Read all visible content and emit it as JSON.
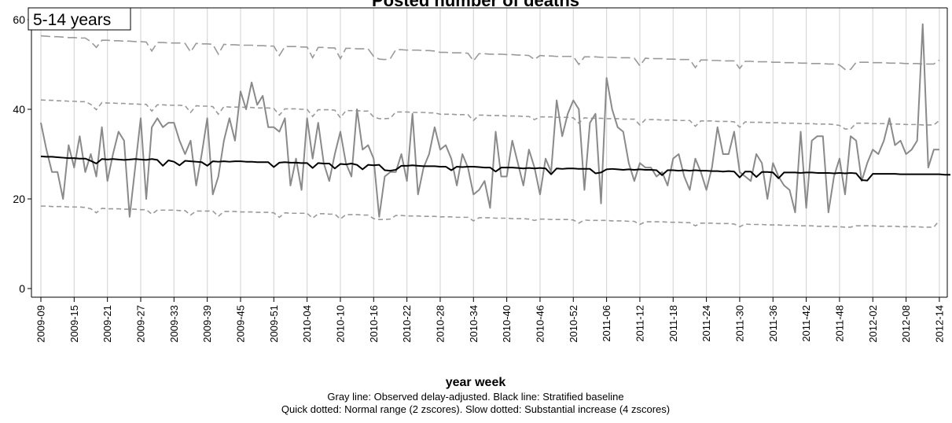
{
  "chart_data": {
    "type": "line",
    "title": "Posted number of deaths",
    "panel_label": "5-14 years",
    "xlabel": "year week",
    "ylabel": "",
    "ylim": [
      0,
      60
    ],
    "yticks": [
      0,
      20,
      40,
      60
    ],
    "grid": "vertical",
    "caption": [
      "Gray line: Observed delay-adjusted. Black line: Stratified baseline",
      "Quick dotted: Normal range (2 zscores). Slow dotted: Substantial increase (4 zscores)"
    ],
    "x_start": "2009-09",
    "x_tick_labels": [
      "2009-09",
      "2009-15",
      "2009-21",
      "2009-27",
      "2009-33",
      "2009-39",
      "2009-45",
      "2009-51",
      "2010-04",
      "2010-10",
      "2010-16",
      "2010-22",
      "2010-28",
      "2010-34",
      "2010-40",
      "2010-46",
      "2010-52",
      "2011-06",
      "2011-12",
      "2011-18",
      "2011-24",
      "2011-30",
      "2011-36",
      "2011-42",
      "2011-48",
      "2012-02",
      "2012-08",
      "2012-14"
    ],
    "colors": {
      "observed": "#8a8a8a",
      "baseline": "#000000",
      "bands": "#9a9a9a",
      "grid": "#d9d9d9"
    },
    "series": [
      {
        "role": "observed",
        "label": "Observed delay-adjusted",
        "values": [
          37,
          31,
          26,
          26,
          20,
          32,
          27,
          34,
          26,
          30,
          25,
          36,
          24,
          30,
          35,
          33,
          16,
          27,
          38,
          20,
          36,
          38,
          36,
          37,
          37,
          33,
          30,
          33,
          23,
          30,
          38,
          21,
          25,
          33,
          38,
          33,
          44,
          40,
          46,
          41,
          43,
          36,
          36,
          35,
          38,
          23,
          29,
          22,
          38,
          29,
          37,
          28,
          24,
          30,
          35,
          28,
          25,
          40,
          31,
          32,
          29,
          16,
          25,
          26,
          26,
          30,
          24,
          39,
          21,
          27,
          30,
          36,
          31,
          32,
          29,
          23,
          30,
          27,
          21,
          22,
          24,
          18,
          35,
          25,
          25,
          33,
          28,
          23,
          31,
          27,
          21,
          29,
          26,
          42,
          34,
          39,
          42,
          40,
          22,
          37,
          39,
          19,
          47,
          40,
          36,
          35,
          28,
          24,
          28,
          27,
          27,
          25,
          26,
          23,
          29,
          30,
          25,
          22,
          29,
          26,
          22,
          27,
          36,
          30,
          30,
          35,
          26,
          25,
          24,
          30,
          28,
          20,
          28,
          25,
          23,
          22,
          17,
          35,
          18,
          33,
          34,
          34,
          17,
          25,
          29,
          21,
          34,
          33,
          24,
          28,
          31,
          30,
          33,
          38,
          32,
          33,
          30,
          31,
          33,
          59,
          27,
          31,
          31
        ]
      },
      {
        "role": "baseline",
        "label": "Stratified baseline",
        "values": [
          29.5,
          29.4,
          29.4,
          29.3,
          29.2,
          29.1,
          29.1,
          29.0,
          29.0,
          28.5,
          27.9,
          28.9,
          28.8,
          28.9,
          28.8,
          28.7,
          28.8,
          28.9,
          28.8,
          28.7,
          28.9,
          28.7,
          27.4,
          28.6,
          28.3,
          27.5,
          28.5,
          28.4,
          28.3,
          28.2,
          27.4,
          28.4,
          28.3,
          28.4,
          28.3,
          28.4,
          28.4,
          28.3,
          28.3,
          28.2,
          28.2,
          28.2,
          27.1,
          28.1,
          28.2,
          28.1,
          28.1,
          28.0,
          28.0,
          26.9,
          28.0,
          27.9,
          27.9,
          26.8,
          27.8,
          27.7,
          27.9,
          27.6,
          26.6,
          27.6,
          27.5,
          27.6,
          26.4,
          26.3,
          26.5,
          27.4,
          27.4,
          27.5,
          27.4,
          27.3,
          27.3,
          27.3,
          27.2,
          27.2,
          26.4,
          27.2,
          27.1,
          27.2,
          27.2,
          27.1,
          27.0,
          27.0,
          26.1,
          27.0,
          27.0,
          27.0,
          26.9,
          26.8,
          26.9,
          26.8,
          26.9,
          26.8,
          25.5,
          26.8,
          26.7,
          26.8,
          26.8,
          26.7,
          26.7,
          26.7,
          25.7,
          25.9,
          26.6,
          26.7,
          26.6,
          26.5,
          26.6,
          26.5,
          26.6,
          26.5,
          26.5,
          26.4,
          25.3,
          26.4,
          26.4,
          26.3,
          26.4,
          26.3,
          26.4,
          26.3,
          26.3,
          26.2,
          26.2,
          26.1,
          26.2,
          26.1,
          24.8,
          26.1,
          26.1,
          24.9,
          26.0,
          26.0,
          25.9,
          24.6,
          25.9,
          25.9,
          25.9,
          25.8,
          25.9,
          25.9,
          25.8,
          25.8,
          25.8,
          25.7,
          25.8,
          25.7,
          25.8,
          25.7,
          24.2,
          24.1,
          25.6,
          25.6,
          25.6,
          25.6,
          25.6,
          25.5,
          25.5,
          25.5,
          25.5,
          25.5,
          25.5,
          25.5,
          25.5,
          25.4,
          25.4
        ]
      },
      {
        "role": "upper4",
        "label": "Substantial increase (4 zscores)",
        "values": [
          56.4,
          56.3,
          56.2,
          56.2,
          56.1,
          56.0,
          56.0,
          55.9,
          55.9,
          55.1,
          53.8,
          55.4,
          55.4,
          55.3,
          55.3,
          55.2,
          55.2,
          55.1,
          55.1,
          55.0,
          53.0,
          54.9,
          54.9,
          54.8,
          54.8,
          54.8,
          54.7,
          52.8,
          54.7,
          54.6,
          54.6,
          54.5,
          52.3,
          54.5,
          54.4,
          54.4,
          54.3,
          54.3,
          54.3,
          54.2,
          54.2,
          54.1,
          54.1,
          52.0,
          54.0,
          54.0,
          54.0,
          53.9,
          53.9,
          51.5,
          53.8,
          53.8,
          53.7,
          53.7,
          51.3,
          53.6,
          53.6,
          53.5,
          53.5,
          53.5,
          51.8,
          51.2,
          51.1,
          51.3,
          53.3,
          53.3,
          53.2,
          53.2,
          53.2,
          53.1,
          53.1,
          53.0,
          52.7,
          52.7,
          52.6,
          52.6,
          52.6,
          52.5,
          50.8,
          52.4,
          52.4,
          52.3,
          52.3,
          52.3,
          52.2,
          52.2,
          52.1,
          52.1,
          52.0,
          51.1,
          52.0,
          51.9,
          51.9,
          51.8,
          51.8,
          51.8,
          51.8,
          50.0,
          51.7,
          51.7,
          51.7,
          51.6,
          51.6,
          51.6,
          51.5,
          51.5,
          51.5,
          51.4,
          49.7,
          51.4,
          51.3,
          51.3,
          51.3,
          51.2,
          51.2,
          51.1,
          51.1,
          51.1,
          49.3,
          51.0,
          51.0,
          50.9,
          50.9,
          50.8,
          50.8,
          50.8,
          49.1,
          50.7,
          50.7,
          50.6,
          50.6,
          50.6,
          50.5,
          50.5,
          50.4,
          50.4,
          50.4,
          50.3,
          50.3,
          50.2,
          50.2,
          50.2,
          50.1,
          50.1,
          49.9,
          48.9,
          48.9,
          50.5,
          50.5,
          50.5,
          50.4,
          50.4,
          50.4,
          50.3,
          50.3,
          50.3,
          50.2,
          50.2,
          50.2,
          50.1,
          50.1,
          50.1,
          51.0
        ]
      },
      {
        "role": "upper2",
        "label": "Normal range upper (2 zscores)",
        "values": [
          42.1,
          42.0,
          42.0,
          41.9,
          41.9,
          41.8,
          41.8,
          41.7,
          41.7,
          41.1,
          39.9,
          41.5,
          41.4,
          41.4,
          41.3,
          41.3,
          41.2,
          41.2,
          41.1,
          41.1,
          39.6,
          41.0,
          41.0,
          40.9,
          40.9,
          40.9,
          40.8,
          39.3,
          40.8,
          40.7,
          40.7,
          40.6,
          38.9,
          40.6,
          40.5,
          40.5,
          40.5,
          40.4,
          40.4,
          40.3,
          40.3,
          40.3,
          40.2,
          38.7,
          40.1,
          40.1,
          40.1,
          40.0,
          40.0,
          38.4,
          39.9,
          39.9,
          39.9,
          39.8,
          38.1,
          39.7,
          39.7,
          39.7,
          39.6,
          39.6,
          38.3,
          37.9,
          37.9,
          38.0,
          39.4,
          39.4,
          39.4,
          39.3,
          39.3,
          39.3,
          39.2,
          39.2,
          38.9,
          38.9,
          38.9,
          38.8,
          38.8,
          38.8,
          37.5,
          38.7,
          38.7,
          38.6,
          38.6,
          38.6,
          38.5,
          38.5,
          38.5,
          38.4,
          38.4,
          37.7,
          38.3,
          38.3,
          38.3,
          38.2,
          38.2,
          38.2,
          38.1,
          36.9,
          38.1,
          38.0,
          38.0,
          38.0,
          37.9,
          37.9,
          37.9,
          37.8,
          37.8,
          37.8,
          36.5,
          37.7,
          37.7,
          37.7,
          37.6,
          37.6,
          37.6,
          37.5,
          37.5,
          37.5,
          36.2,
          37.4,
          37.4,
          37.4,
          37.3,
          37.3,
          37.3,
          37.2,
          36.0,
          37.2,
          37.1,
          37.1,
          37.1,
          37.0,
          37.0,
          37.0,
          36.9,
          36.9,
          36.9,
          36.8,
          36.8,
          36.8,
          36.7,
          36.7,
          36.7,
          36.6,
          36.4,
          35.6,
          35.6,
          36.9,
          36.9,
          36.9,
          36.8,
          36.8,
          36.8,
          36.7,
          36.7,
          36.7,
          36.6,
          36.6,
          36.6,
          36.5,
          36.5,
          36.5,
          37.5
        ]
      },
      {
        "role": "lower2",
        "label": "Normal range lower (2 zscores)",
        "values": [
          18.4,
          18.4,
          18.3,
          18.3,
          18.3,
          18.2,
          18.2,
          18.2,
          18.1,
          17.8,
          16.9,
          17.9,
          17.8,
          17.8,
          17.8,
          17.7,
          17.7,
          17.7,
          17.6,
          17.6,
          16.6,
          17.5,
          17.5,
          17.5,
          17.5,
          17.4,
          17.4,
          16.4,
          17.3,
          17.3,
          17.3,
          17.3,
          16.1,
          17.2,
          17.2,
          17.2,
          17.1,
          17.1,
          17.1,
          17.0,
          17.0,
          17.0,
          16.9,
          15.9,
          16.9,
          16.8,
          16.8,
          16.8,
          16.8,
          15.7,
          16.7,
          16.7,
          16.6,
          16.6,
          15.5,
          16.5,
          16.5,
          16.5,
          16.4,
          16.4,
          15.6,
          15.4,
          15.4,
          15.5,
          16.3,
          16.3,
          16.2,
          16.2,
          16.2,
          16.1,
          16.1,
          16.1,
          16.0,
          16.0,
          16.0,
          15.9,
          15.9,
          15.9,
          15.1,
          15.8,
          15.8,
          15.8,
          15.7,
          15.7,
          15.7,
          15.6,
          15.6,
          15.6,
          15.5,
          15.2,
          15.5,
          15.5,
          15.4,
          15.4,
          15.4,
          15.4,
          15.3,
          14.6,
          15.3,
          15.2,
          15.2,
          15.2,
          15.2,
          15.1,
          15.1,
          15.1,
          15.0,
          15.0,
          14.3,
          14.9,
          14.9,
          14.9,
          14.9,
          14.8,
          14.8,
          14.8,
          14.7,
          14.7,
          14.0,
          14.6,
          14.6,
          14.6,
          14.5,
          14.5,
          14.5,
          14.4,
          13.8,
          14.4,
          14.3,
          14.3,
          14.3,
          14.2,
          14.2,
          14.2,
          14.1,
          14.1,
          14.1,
          14.0,
          14.0,
          14.0,
          13.9,
          13.9,
          13.9,
          13.8,
          13.8,
          13.7,
          13.7,
          14.0,
          14.0,
          14.0,
          14.0,
          13.9,
          13.9,
          13.9,
          13.9,
          13.8,
          13.8,
          13.8,
          13.8,
          13.7,
          13.7,
          13.7,
          15.2
        ]
      }
    ]
  }
}
